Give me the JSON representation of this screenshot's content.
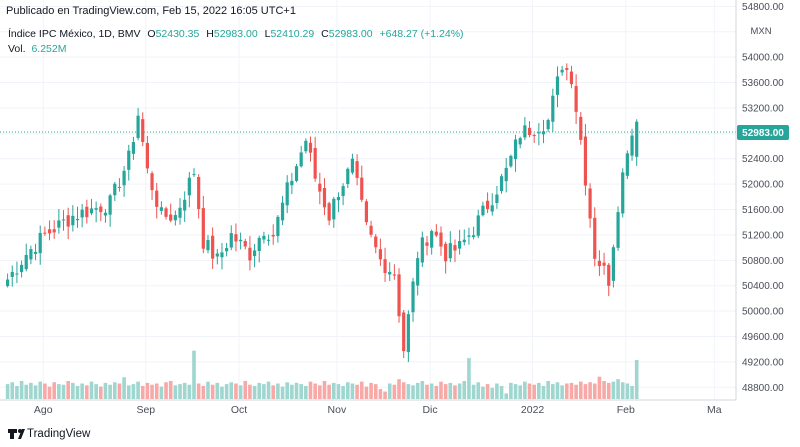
{
  "header": {
    "published": "Publicado en TradingView.com, Feb 15, 2022 16:05 UTC+1",
    "symbol": "Índice IPC México, 1D, BMV",
    "ohlc": [
      {
        "k": "O",
        "v": "52430.35"
      },
      {
        "k": "H",
        "v": "52983.00"
      },
      {
        "k": "L",
        "v": "52410.29"
      },
      {
        "k": "C",
        "v": "52983.00"
      }
    ],
    "change": "+648.27 (+1.24%)",
    "vol_label": "Vol.",
    "vol_value": "6.252M"
  },
  "price_axis": {
    "currency": "MXN",
    "last_price": "52983.00",
    "ticks": [
      "48800.00",
      "49200.00",
      "49600.00",
      "50000.00",
      "50400.00",
      "50800.00",
      "51200.00",
      "51600.00",
      "52000.00",
      "52400.00",
      "52800.00",
      "53200.00",
      "53600.00",
      "54000.00",
      "54400.00",
      "54800.00"
    ]
  },
  "time_axis": [
    "Ago",
    "Sep",
    "Oct",
    "Nov",
    "Dic",
    "2022",
    "Feb",
    "Ma"
  ],
  "footer": {
    "brand": "TradingView"
  },
  "colors": {
    "up": "#26a69a",
    "down": "#ef5350",
    "up_vol": "#9fd6cf",
    "down_vol": "#f7a9a7",
    "text": "#131722",
    "axis_text": "#4a4e59",
    "grid": "#f0f3fa"
  },
  "chart_data": {
    "type": "candlestick",
    "title": "Índice IPC México, 1D, BMV",
    "currency": "MXN",
    "y_range": [
      48600,
      54900
    ],
    "last_close": 52983.0,
    "sessions": 135,
    "month_starts": [
      {
        "label": "Ago",
        "session": 8
      },
      {
        "label": "Sep",
        "session": 30
      },
      {
        "label": "Oct",
        "session": 50
      },
      {
        "label": "Nov",
        "session": 71
      },
      {
        "label": "Dic",
        "session": 91
      },
      {
        "label": "2022",
        "session": 113
      },
      {
        "label": "Feb",
        "session": 133
      },
      {
        "label": "Ma",
        "session": 152
      }
    ],
    "close_path": [
      [
        0,
        50500
      ],
      [
        4,
        50900
      ],
      [
        8,
        51200
      ],
      [
        14,
        51500
      ],
      [
        22,
        51700
      ],
      [
        26,
        52400
      ],
      [
        28,
        53100
      ],
      [
        30,
        52200
      ],
      [
        33,
        51500
      ],
      [
        36,
        51500
      ],
      [
        40,
        52200
      ],
      [
        42,
        51100
      ],
      [
        45,
        50800
      ],
      [
        48,
        51200
      ],
      [
        52,
        50900
      ],
      [
        55,
        51300
      ],
      [
        57,
        51200
      ],
      [
        60,
        51900
      ],
      [
        63,
        52500
      ],
      [
        64,
        52700
      ],
      [
        66,
        52100
      ],
      [
        69,
        51500
      ],
      [
        71,
        51900
      ],
      [
        74,
        52300
      ],
      [
        77,
        51300
      ],
      [
        80,
        50800
      ],
      [
        83,
        50600
      ],
      [
        85,
        49400
      ],
      [
        88,
        50900
      ],
      [
        91,
        51300
      ],
      [
        94,
        50900
      ],
      [
        97,
        51000
      ],
      [
        100,
        51300
      ],
      [
        104,
        51800
      ],
      [
        107,
        52200
      ],
      [
        110,
        52800
      ],
      [
        113,
        52900
      ],
      [
        116,
        53000
      ],
      [
        119,
        53900
      ],
      [
        121,
        53700
      ],
      [
        123,
        52700
      ],
      [
        126,
        50900
      ],
      [
        129,
        50500
      ],
      [
        131,
        51700
      ],
      [
        133,
        52600
      ],
      [
        135,
        52983
      ]
    ],
    "volume_millions": [
      2.4,
      2.7,
      2.1,
      2.9,
      2.3,
      2.6,
      2.2,
      2.8,
      2.5,
      2.0,
      2.7,
      2.4,
      2.3,
      2.9,
      2.6,
      2.1,
      2.5,
      2.2,
      2.8,
      2.4,
      2.0,
      2.6,
      2.3,
      2.7,
      2.5,
      3.5,
      2.2,
      2.4,
      2.8,
      2.1,
      2.6,
      2.3,
      2.5,
      2.0,
      2.7,
      2.9,
      2.2,
      2.4,
      2.6,
      2.3,
      7.8,
      2.5,
      2.1,
      2.8,
      2.3,
      2.6,
      2.0,
      2.4,
      2.7,
      2.5,
      2.2,
      2.9,
      2.3,
      2.1,
      2.6,
      2.4,
      2.8,
      2.2,
      2.5,
      2.0,
      2.7,
      2.3,
      2.6,
      2.4,
      2.1,
      2.8,
      2.5,
      2.2,
      2.9,
      2.3,
      2.6,
      2.4,
      2.1,
      2.7,
      2.5,
      2.3,
      2.8,
      2.0,
      2.6,
      2.4,
      1.6,
      1.2,
      2.5,
      2.3,
      3.2,
      2.7,
      2.4,
      2.2,
      2.6,
      2.9,
      2.3,
      2.5,
      2.1,
      2.8,
      2.4,
      2.6,
      2.2,
      2.5,
      2.9,
      6.6,
      2.3,
      2.7,
      2.0,
      2.4,
      1.8,
      2.5,
      2.1,
      0.9,
      2.6,
      2.4,
      2.2,
      2.8,
      2.5,
      2.3,
      2.6,
      2.1,
      2.9,
      2.4,
      2.7,
      2.2,
      2.5,
      2.6,
      2.3,
      2.8,
      2.4,
      2.7,
      2.5,
      3.6,
      2.9,
      2.6,
      2.8,
      3.2,
      2.7,
      2.5,
      2.1,
      6.3
    ]
  }
}
